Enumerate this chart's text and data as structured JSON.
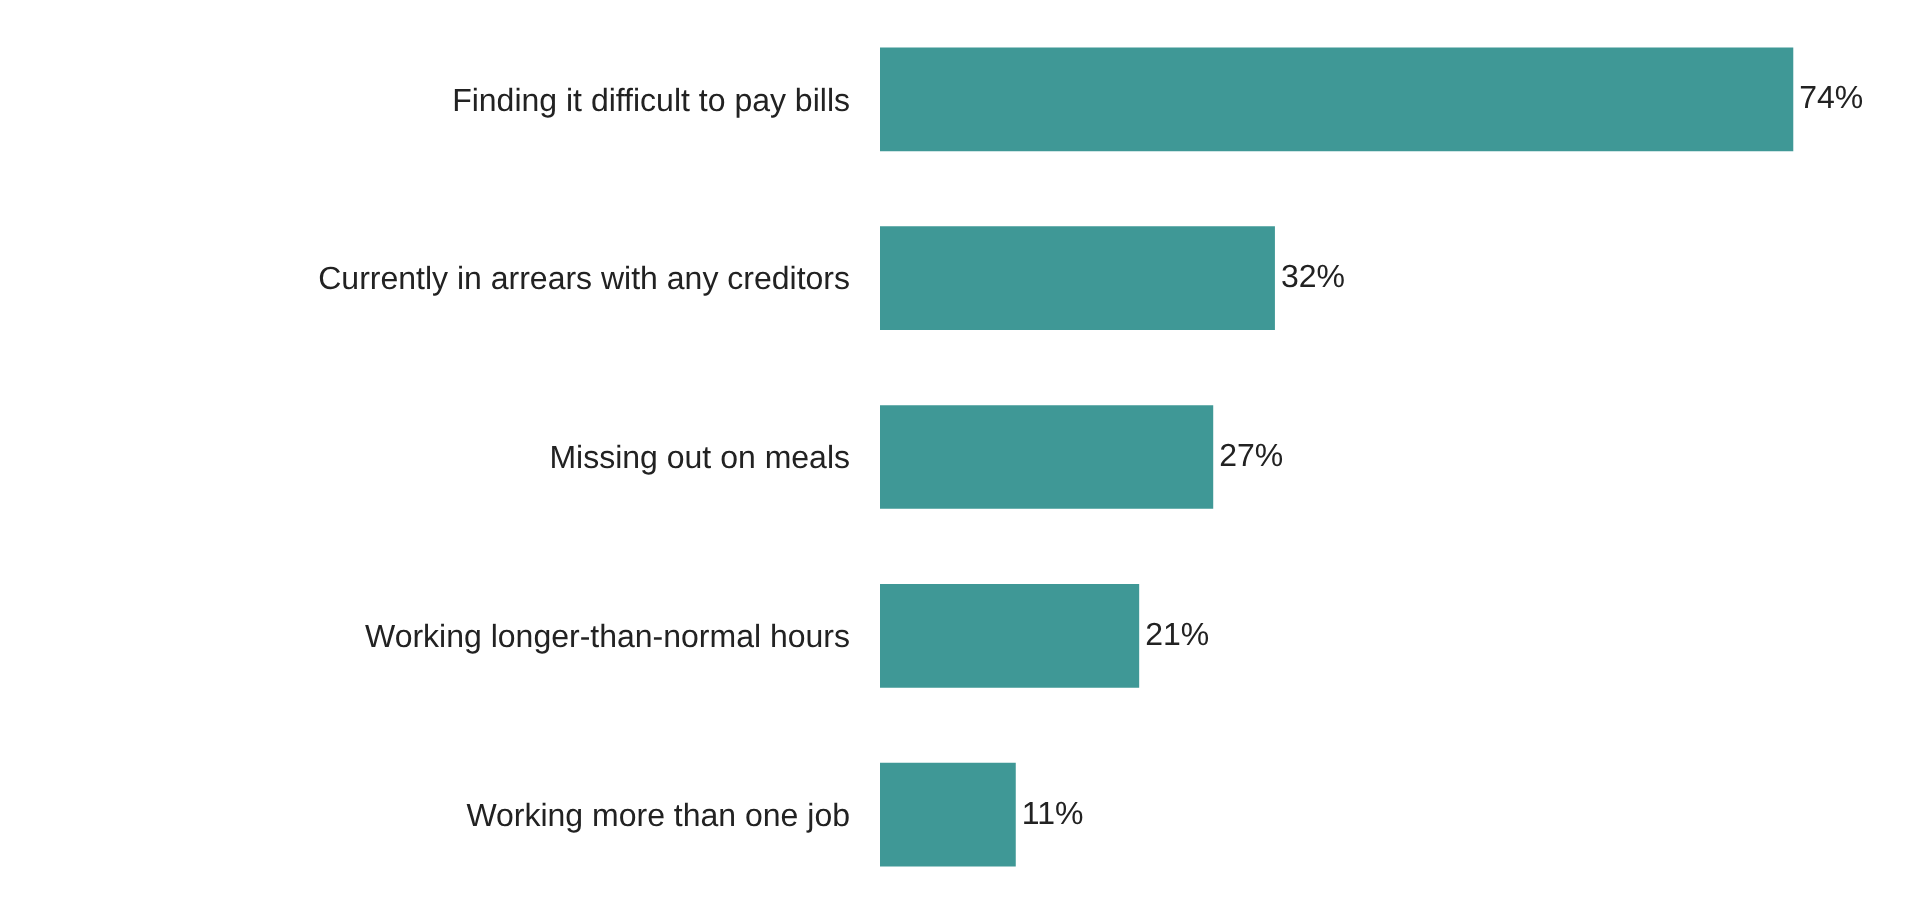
{
  "chart_data": {
    "type": "bar",
    "orientation": "horizontal",
    "categories": [
      "Finding it difficult to pay bills",
      "Currently in arrears with any creditors",
      "Missing out on meals",
      "Working longer-than-normal hours",
      "Working more than one job"
    ],
    "values": [
      74,
      32,
      27,
      21,
      11
    ],
    "value_labels": [
      "74%",
      "32%",
      "27%",
      "21%",
      "11%"
    ],
    "color": "#3f9896"
  }
}
